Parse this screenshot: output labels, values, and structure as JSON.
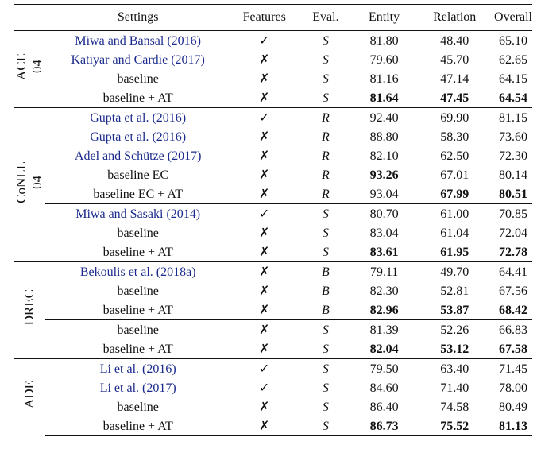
{
  "headers": [
    "Settings",
    "Features",
    "Eval.",
    "Entity",
    "Relation",
    "Overall"
  ],
  "groups": [
    {
      "label": "ACE\n04",
      "rows": [
        {
          "setting": "Miwa and Bansal (2016)",
          "cite": true,
          "features": "✓",
          "eval": "S",
          "entity": "81.80",
          "relation": "48.40",
          "overall": "65.10",
          "bold": []
        },
        {
          "setting": "Katiyar and Cardie (2017)",
          "cite": true,
          "features": "✗",
          "eval": "S",
          "entity": "79.60",
          "relation": "45.70",
          "overall": "62.65",
          "bold": []
        },
        {
          "setting": "baseline",
          "cite": false,
          "features": "✗",
          "eval": "S",
          "entity": "81.16",
          "relation": "47.14",
          "overall": "64.15",
          "bold": []
        },
        {
          "setting": "baseline + AT",
          "cite": false,
          "features": "✗",
          "eval": "S",
          "entity": "81.64",
          "relation": "47.45",
          "overall": "64.54",
          "bold": [
            "entity",
            "relation",
            "overall"
          ]
        }
      ]
    },
    {
      "label": "CoNLL\n04",
      "rows": [
        {
          "setting": "Gupta et al. (2016)",
          "cite": true,
          "features": "✓",
          "eval": "R",
          "entity": "92.40",
          "relation": "69.90",
          "overall": "81.15",
          "bold": []
        },
        {
          "setting": "Gupta et al. (2016)",
          "cite": true,
          "features": "✗",
          "eval": "R",
          "entity": "88.80",
          "relation": "58.30",
          "overall": "73.60",
          "bold": []
        },
        {
          "setting": "Adel and Schütze (2017)",
          "cite": true,
          "features": "✗",
          "eval": "R",
          "entity": "82.10",
          "relation": "62.50",
          "overall": "72.30",
          "bold": []
        },
        {
          "setting": "baseline EC",
          "cite": false,
          "features": "✗",
          "eval": "R",
          "entity": "93.26",
          "relation": "67.01",
          "overall": "80.14",
          "bold": [
            "entity"
          ]
        },
        {
          "setting": "baseline EC + AT",
          "cite": false,
          "features": "✗",
          "eval": "R",
          "entity": "93.04",
          "relation": "67.99",
          "overall": "80.51",
          "bold": [
            "relation",
            "overall"
          ]
        },
        {
          "setting": "Miwa and Sasaki (2014)",
          "cite": true,
          "features": "✓",
          "eval": "S",
          "entity": "80.70",
          "relation": "61.00",
          "overall": "70.85",
          "bold": [],
          "inner_rule": true
        },
        {
          "setting": "baseline",
          "cite": false,
          "features": "✗",
          "eval": "S",
          "entity": "83.04",
          "relation": "61.04",
          "overall": "72.04",
          "bold": []
        },
        {
          "setting": "baseline + AT",
          "cite": false,
          "features": "✗",
          "eval": "S",
          "entity": "83.61",
          "relation": "61.95",
          "overall": "72.78",
          "bold": [
            "entity",
            "relation",
            "overall"
          ]
        }
      ]
    },
    {
      "label": "DREC",
      "rows": [
        {
          "setting": "Bekoulis et al. (2018a)",
          "cite": true,
          "features": "✗",
          "eval": "B",
          "entity": "79.11",
          "relation": "49.70",
          "overall": "64.41",
          "bold": []
        },
        {
          "setting": "baseline",
          "cite": false,
          "features": "✗",
          "eval": "B",
          "entity": "82.30",
          "relation": "52.81",
          "overall": "67.56",
          "bold": []
        },
        {
          "setting": "baseline + AT",
          "cite": false,
          "features": "✗",
          "eval": "B",
          "entity": "82.96",
          "relation": "53.87",
          "overall": "68.42",
          "bold": [
            "entity",
            "relation",
            "overall"
          ]
        },
        {
          "setting": "baseline",
          "cite": false,
          "features": "✗",
          "eval": "S",
          "entity": "81.39",
          "relation": "52.26",
          "overall": "66.83",
          "bold": [],
          "inner_rule": true
        },
        {
          "setting": "baseline + AT",
          "cite": false,
          "features": "✗",
          "eval": "S",
          "entity": "82.04",
          "relation": "53.12",
          "overall": "67.58",
          "bold": [
            "entity",
            "relation",
            "overall"
          ]
        }
      ]
    },
    {
      "label": "ADE",
      "rows": [
        {
          "setting": "Li et al. (2016)",
          "cite": true,
          "features": "✓",
          "eval": "S",
          "entity": "79.50",
          "relation": "63.40",
          "overall": "71.45",
          "bold": []
        },
        {
          "setting": "Li et al. (2017)",
          "cite": true,
          "features": "✓",
          "eval": "S",
          "entity": "84.60",
          "relation": "71.40",
          "overall": "78.00",
          "bold": []
        },
        {
          "setting": "baseline",
          "cite": false,
          "features": "✗",
          "eval": "S",
          "entity": "86.40",
          "relation": "74.58",
          "overall": "80.49",
          "bold": []
        },
        {
          "setting": "baseline + AT",
          "cite": false,
          "features": "✗",
          "eval": "S",
          "entity": "86.73",
          "relation": "75.52",
          "overall": "81.13",
          "bold": [
            "entity",
            "relation",
            "overall"
          ]
        }
      ]
    }
  ]
}
